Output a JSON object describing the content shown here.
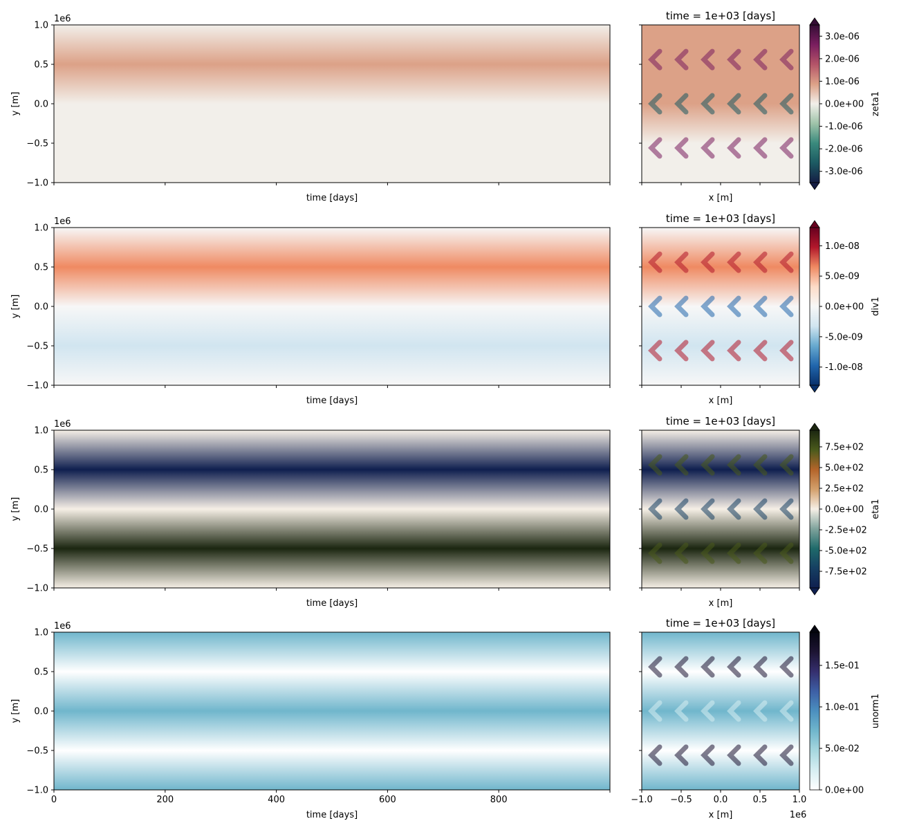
{
  "figure": {
    "x_offset_label": "1e6",
    "y_offset_label": "1e6"
  },
  "chart_data": [
    {
      "type": "heatmap",
      "panel": "hovmoller",
      "variable": "zeta1",
      "xlabel": "time [days]",
      "ylabel": "y [m]",
      "xlim": [
        0,
        1000
      ],
      "ylim": [
        -1.0,
        1.0
      ],
      "x_ticks": [
        0,
        200,
        400,
        600,
        800
      ],
      "y_ticks": [
        "1.0",
        "0.5",
        "0.0",
        "−0.5",
        "−1.0"
      ],
      "show_x_ticklabels": false,
      "colormap": "curl (diverging green-white-red)",
      "band_profile_y": [
        {
          "y": 1.0,
          "value": 0.05
        },
        {
          "y": 0.5,
          "value": 0.12
        },
        {
          "y": 0.0,
          "value": 0.06
        },
        {
          "y": -0.5,
          "value": -0.04
        },
        {
          "y": -1.0,
          "value": 0.03
        }
      ]
    },
    {
      "type": "heatmap",
      "panel": "snapshot",
      "variable": "zeta1",
      "title": "time = 1e+03 [days]",
      "xlabel": "x [m]",
      "xlim": [
        -1.0,
        1.0
      ],
      "ylim": [
        -1.0,
        1.0
      ],
      "colorbar": {
        "label": "zeta1",
        "ticks": [
          "3.0e-06",
          "2.0e-06",
          "1.0e-06",
          "0.0e+00",
          "-1.0e-06",
          "-2.0e-06",
          "-3.0e-06"
        ],
        "range": [
          -3.5e-06,
          3.5e-06
        ],
        "extend": "both",
        "colors": [
          "#151d44",
          "#1c5a62",
          "#3a8a7d",
          "#9fc3a9",
          "#f2efea",
          "#dca187",
          "#b45468",
          "#7a1e5f",
          "#340d35"
        ]
      }
    },
    {
      "type": "heatmap",
      "panel": "hovmoller",
      "variable": "div1",
      "xlabel": "time [days]",
      "ylabel": "y [m]",
      "xlim": [
        0,
        1000
      ],
      "ylim": [
        -1.0,
        1.0
      ],
      "x_ticks": [
        0,
        200,
        400,
        600,
        800
      ],
      "y_ticks": [
        "1.0",
        "0.5",
        "0.0",
        "−0.5",
        "−1.0"
      ],
      "show_x_ticklabels": false,
      "colormap": "RdBu_r (diverging blue-white-red)",
      "band_profile_y": [
        {
          "y": 1.0,
          "value": 0.0
        },
        {
          "y": 0.5,
          "value": 0.22
        },
        {
          "y": 0.0,
          "value": 0.0
        },
        {
          "y": -0.5,
          "value": -0.12
        },
        {
          "y": -1.0,
          "value": -0.02
        }
      ]
    },
    {
      "type": "heatmap",
      "panel": "snapshot",
      "variable": "div1",
      "title": "time = 1e+03 [days]",
      "xlabel": "x [m]",
      "xlim": [
        -1.0,
        1.0
      ],
      "ylim": [
        -1.0,
        1.0
      ],
      "colorbar": {
        "label": "div1",
        "ticks": [
          "1.0e-08",
          "5.0e-09",
          "0.0e+00",
          "-5.0e-09",
          "-1.0e-08"
        ],
        "range": [
          -1.3e-08,
          1.3e-08
        ],
        "extend": "both",
        "colors": [
          "#08306b",
          "#2166ac",
          "#67a9cf",
          "#d1e5f0",
          "#f7f7f7",
          "#fddbc7",
          "#ef8a62",
          "#b2182b",
          "#67001f"
        ]
      }
    },
    {
      "type": "heatmap",
      "panel": "hovmoller",
      "variable": "eta1",
      "xlabel": "time [days]",
      "ylabel": "y [m]",
      "xlim": [
        0,
        1000
      ],
      "ylim": [
        -1.0,
        1.0
      ],
      "x_ticks": [
        0,
        200,
        400,
        600,
        800
      ],
      "y_ticks": [
        "1.0",
        "0.5",
        "0.0",
        "−0.5",
        "−1.0"
      ],
      "show_x_ticklabels": false,
      "colormap": "tarn (diverging navy-teal-white-orange-green)",
      "band_profile_y": [
        {
          "y": 1.0,
          "value": 0
        },
        {
          "y": 0.5,
          "value": -900
        },
        {
          "y": 0.0,
          "value": 0
        },
        {
          "y": -0.5,
          "value": 900
        },
        {
          "y": -1.0,
          "value": 0
        }
      ]
    },
    {
      "type": "heatmap",
      "panel": "snapshot",
      "variable": "eta1",
      "title": "time = 1e+03 [days]",
      "xlabel": "x [m]",
      "xlim": [
        -1.0,
        1.0
      ],
      "ylim": [
        -1.0,
        1.0
      ],
      "colorbar": {
        "label": "eta1",
        "ticks": [
          "7.5e+02",
          "5.0e+02",
          "2.5e+02",
          "0.0e+00",
          "-2.5e+02",
          "-5.0e+02",
          "-7.5e+02"
        ],
        "range": [
          -950,
          950
        ],
        "extend": "both",
        "colors": [
          "#0f1f4f",
          "#163f62",
          "#1f6a6a",
          "#7fa39c",
          "#f6efe6",
          "#d3a06c",
          "#b4652a",
          "#4a5a1c",
          "#1b2610"
        ]
      }
    },
    {
      "type": "heatmap",
      "panel": "hovmoller",
      "variable": "unorm1",
      "xlabel": "time [days]",
      "ylabel": "y [m]",
      "xlim": [
        0,
        1000
      ],
      "ylim": [
        -1.0,
        1.0
      ],
      "x_ticks": [
        0,
        200,
        400,
        600,
        800
      ],
      "x_tick_labels": [
        "0",
        "200",
        "400",
        "600",
        "800"
      ],
      "y_ticks": [
        "1.0",
        "0.5",
        "0.0",
        "−0.5",
        "−1.0"
      ],
      "show_x_ticklabels": true,
      "colormap": "ice_r (sequential white-blue-black)",
      "band_profile_y": [
        {
          "y": 1.0,
          "value": 0.06
        },
        {
          "y": 0.5,
          "value": 0.0
        },
        {
          "y": 0.0,
          "value": 0.06
        },
        {
          "y": -0.5,
          "value": 0.0
        },
        {
          "y": -1.0,
          "value": 0.06
        }
      ]
    },
    {
      "type": "heatmap",
      "panel": "snapshot",
      "variable": "unorm1",
      "title": "time = 1e+03 [days]",
      "xlabel": "x [m]",
      "xlim": [
        -1.0,
        1.0
      ],
      "ylim": [
        -1.0,
        1.0
      ],
      "x_tick_labels": [
        "−1.0",
        "−0.5",
        "0.0",
        "0.5",
        "1.0"
      ],
      "colorbar": {
        "label": "unorm1",
        "ticks": [
          "1.5e-01",
          "1.0e-01",
          "5.0e-02",
          "0.0e+00"
        ],
        "range": [
          0.0,
          0.19
        ],
        "extend": "max",
        "colors": [
          "#ffffff",
          "#d6eef2",
          "#a6d7df",
          "#70b6cc",
          "#4b8fbf",
          "#3d5fa5",
          "#352f6e",
          "#1d1433",
          "#04050f"
        ]
      }
    }
  ]
}
